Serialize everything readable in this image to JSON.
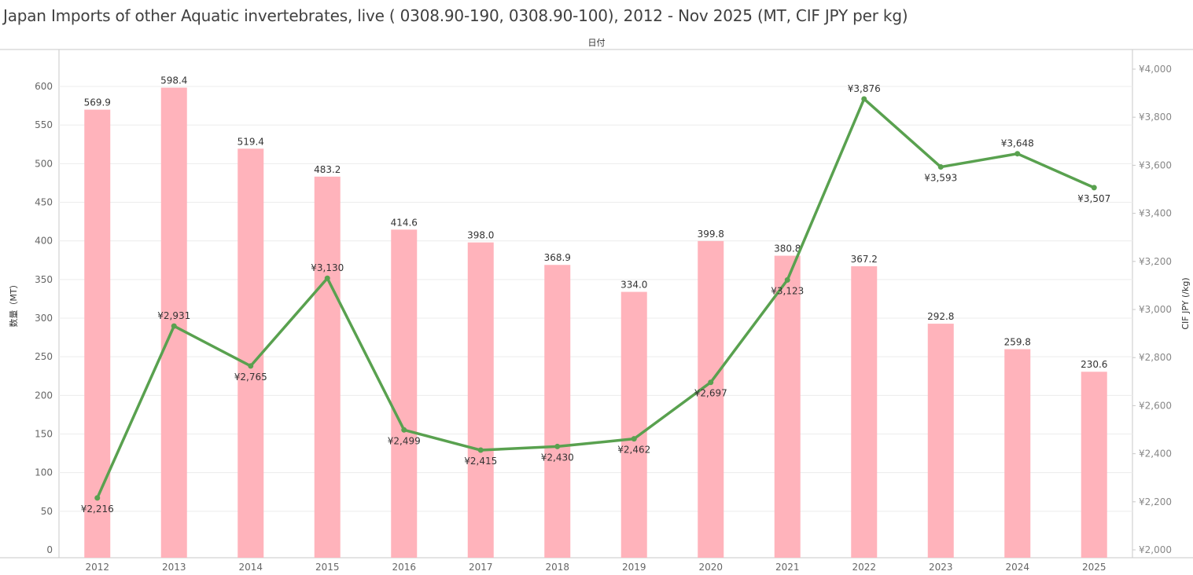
{
  "chart_data": {
    "type": "bar",
    "title": "Japan Imports of other Aquatic invertebrates, live ( 0308.90-190, 0308.90-100), 2012 - Nov 2025 (MT, CIF JPY per kg)",
    "column_header": "日付",
    "categories": [
      "2012",
      "2013",
      "2014",
      "2015",
      "2016",
      "2017",
      "2018",
      "2019",
      "2020",
      "2021",
      "2022",
      "2023",
      "2024",
      "2025"
    ],
    "series": [
      {
        "type": "bar",
        "axis": "left",
        "color": "#ffb3bb",
        "values": [
          569.9,
          598.4,
          519.4,
          483.2,
          414.6,
          398.0,
          368.9,
          334.0,
          399.8,
          380.8,
          367.2,
          292.8,
          259.8,
          230.6
        ],
        "labels": [
          "569.9",
          "598.4",
          "519.4",
          "483.2",
          "414.6",
          "398.0",
          "368.9",
          "334.0",
          "399.8",
          "380.8",
          "367.2",
          "292.8",
          "259.8",
          "230.6"
        ]
      },
      {
        "type": "line",
        "axis": "right",
        "color": "#59a14f",
        "values": [
          2216,
          2931,
          2765,
          3130,
          2499,
          2415,
          2430,
          2462,
          2697,
          3123,
          3876,
          3593,
          3648,
          3507
        ],
        "labels": [
          "¥2,216",
          "¥2,931",
          "¥2,765",
          "¥3,130",
          "¥2,499",
          "¥2,415",
          "¥2,430",
          "¥2,462",
          "¥2,697",
          "¥3,123",
          "¥3,876",
          "¥3,593",
          "¥3,648",
          "¥3,507"
        ],
        "label_position": [
          "below",
          "above",
          "below",
          "above",
          "below",
          "below",
          "below",
          "below",
          "below",
          "below",
          "above",
          "below",
          "above",
          "below"
        ]
      }
    ],
    "ylabel": "数量（MT）",
    "ylabel_right": "CIF JPY (/kg)",
    "ylim": [
      0,
      640
    ],
    "yticks": [
      0,
      50,
      100,
      150,
      200,
      250,
      300,
      350,
      400,
      450,
      500,
      550,
      600
    ],
    "ylim_right": [
      2000,
      4080
    ],
    "yticks_right": [
      2000,
      2200,
      2400,
      2600,
      2800,
      3000,
      3200,
      3400,
      3600,
      3800,
      4000
    ],
    "yticks_right_labels": [
      "¥2,000",
      "¥2,200",
      "¥2,400",
      "¥2,600",
      "¥2,800",
      "¥3,000",
      "¥3,200",
      "¥3,400",
      "¥3,600",
      "¥3,800",
      "¥4,000"
    ],
    "grid": true,
    "legend": "none"
  }
}
